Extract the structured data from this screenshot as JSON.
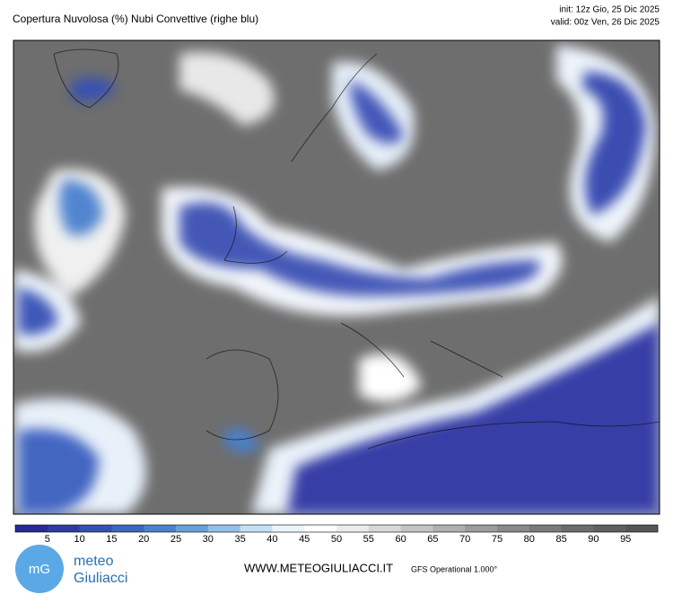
{
  "header": {
    "title": "Copertura Nuvolosa (%) Nubi Convettive (righe blu)",
    "init": "init: 12z Gio, 25 Dic 2025",
    "valid": "valid: 00z Ven, 26 Dic 2025"
  },
  "legend": {
    "ticks": [
      5,
      10,
      15,
      20,
      25,
      30,
      35,
      40,
      45,
      50,
      55,
      60,
      65,
      70,
      75,
      80,
      85,
      90,
      95
    ],
    "colors": [
      "#29289a",
      "#2f3aa8",
      "#3550b5",
      "#3b66c2",
      "#4a80cf",
      "#6a9fdc",
      "#93c0ea",
      "#c4e0f5",
      "#eaf4fb",
      "#ffffff",
      "#ececec",
      "#d8d8d8",
      "#c4c4c4",
      "#b0b0b0",
      "#9c9c9c",
      "#8a8a8a",
      "#7a7a7a",
      "#6c6c6c",
      "#606060",
      "#555555"
    ]
  },
  "footer": {
    "logo_top": "meteo",
    "logo_bottom": "Giuliacci",
    "logo_mark": "mG",
    "website": "WWW.METEOGIULIACCI.IT",
    "model": "GFS Operational 1.000°"
  }
}
